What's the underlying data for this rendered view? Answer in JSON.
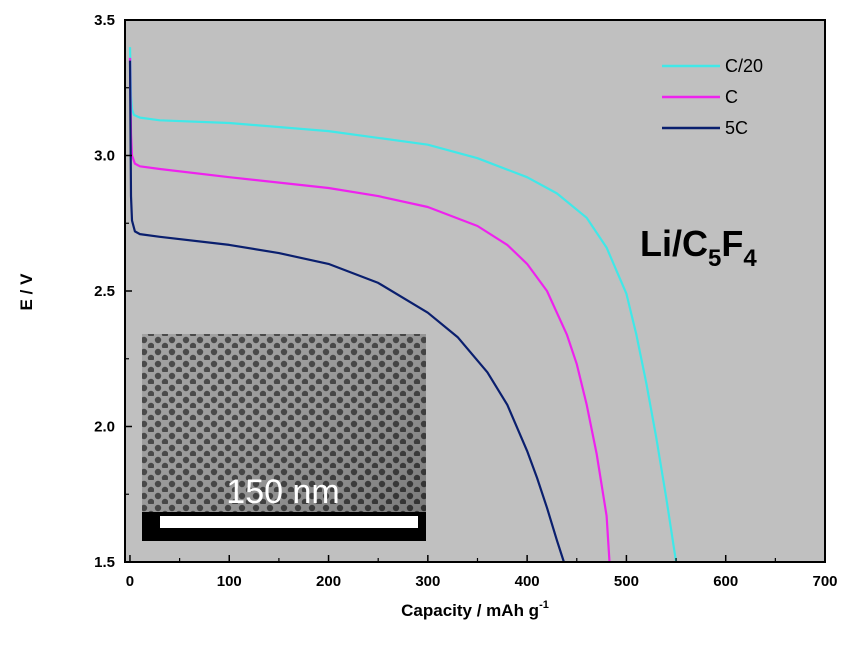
{
  "chart_data": {
    "type": "line",
    "xlabel": "Capacity / mAh g",
    "xlabel_sup": "-1",
    "ylabel": "E / V",
    "xlim": [
      -5,
      700
    ],
    "ylim": [
      1.5,
      3.5
    ],
    "xticks": [
      0,
      100,
      200,
      300,
      400,
      500,
      600,
      700
    ],
    "yticks": [
      1.5,
      2.0,
      2.5,
      3.0,
      3.5
    ],
    "ytick_labels": [
      "1.5",
      "2.0",
      "2.5",
      "3.0",
      "3.5"
    ],
    "grid": false,
    "legend_position": "top-right",
    "background": "#c0c0c0",
    "annotation": {
      "main": "Li/C",
      "sub1": "5",
      "mid": "F",
      "sub2": "4"
    },
    "inset": {
      "description_label": "150 nm"
    },
    "series": [
      {
        "name": "C/20",
        "color": "#40e8e8",
        "x": [
          0,
          0.5,
          1,
          2,
          4,
          10,
          30,
          100,
          200,
          300,
          350,
          400,
          430,
          460,
          480,
          500,
          510,
          520,
          530,
          540,
          550
        ],
        "y": [
          3.4,
          3.32,
          3.22,
          3.17,
          3.15,
          3.14,
          3.13,
          3.12,
          3.09,
          3.04,
          2.99,
          2.92,
          2.86,
          2.77,
          2.66,
          2.49,
          2.34,
          2.16,
          1.96,
          1.74,
          1.5
        ]
      },
      {
        "name": "C",
        "color": "#ee22ee",
        "x": [
          0,
          0.5,
          1,
          2,
          5,
          10,
          30,
          100,
          200,
          250,
          300,
          350,
          380,
          400,
          420,
          440,
          450,
          460,
          470,
          480,
          483
        ],
        "y": [
          3.36,
          3.22,
          3.08,
          3.0,
          2.97,
          2.96,
          2.95,
          2.92,
          2.88,
          2.85,
          2.81,
          2.74,
          2.67,
          2.6,
          2.5,
          2.34,
          2.23,
          2.08,
          1.9,
          1.67,
          1.5
        ]
      },
      {
        "name": "5C",
        "color": "#0a1f6e",
        "x": [
          0,
          0.5,
          1,
          2,
          5,
          10,
          30,
          100,
          150,
          200,
          250,
          300,
          330,
          360,
          380,
          400,
          410,
          420,
          430,
          437
        ],
        "y": [
          3.35,
          3.1,
          2.85,
          2.76,
          2.72,
          2.71,
          2.7,
          2.67,
          2.64,
          2.6,
          2.53,
          2.42,
          2.33,
          2.2,
          2.08,
          1.91,
          1.81,
          1.7,
          1.58,
          1.5
        ]
      }
    ]
  }
}
